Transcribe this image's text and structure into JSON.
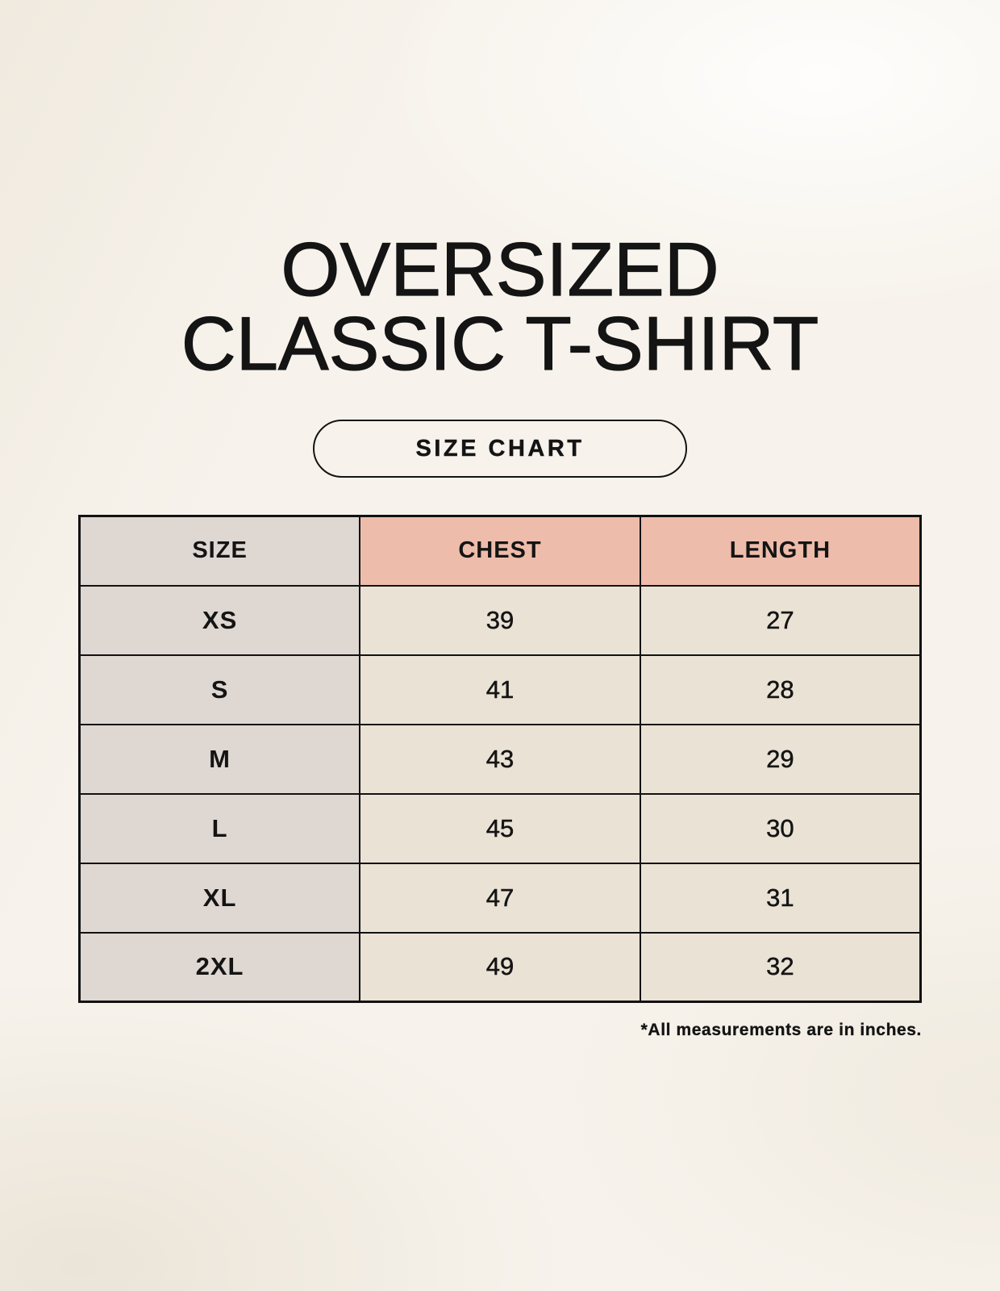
{
  "header": {
    "title_line1": "OVERSIZED",
    "title_line2": "CLASSIC T-SHIRT",
    "button_label": "SIZE CHART"
  },
  "footnote": "*All measurements are in inches.",
  "colors": {
    "background": "#f7f3ec",
    "header_accent_pink": "#eebcab",
    "size_column_gray": "#ded7d2",
    "data_cell_cream": "#eae3d5",
    "border_and_text": "#141414"
  },
  "chart_data": {
    "type": "table",
    "title": "OVERSIZED CLASSIC T-SHIRT SIZE CHART",
    "columns": [
      "SIZE",
      "CHEST",
      "LENGTH"
    ],
    "rows": [
      [
        "XS",
        "39",
        "27"
      ],
      [
        "S",
        "41",
        "28"
      ],
      [
        "M",
        "43",
        "29"
      ],
      [
        "L",
        "45",
        "30"
      ],
      [
        "XL",
        "47",
        "31"
      ],
      [
        "2XL",
        "49",
        "32"
      ]
    ],
    "units": "inches"
  }
}
